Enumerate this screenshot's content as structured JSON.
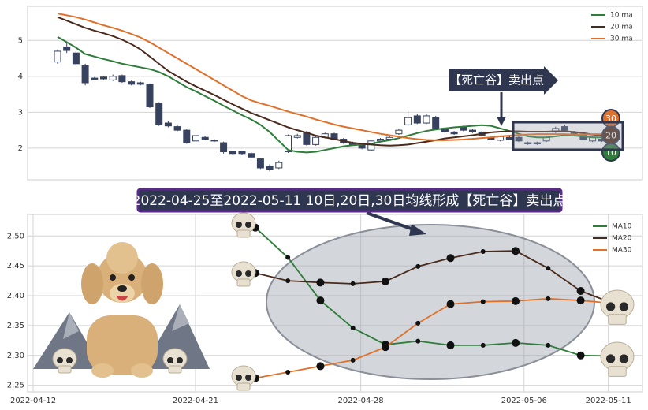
{
  "chart_data": [
    {
      "type": "candlestick",
      "open": [
        4.4,
        4.82,
        4.65,
        4.3,
        3.95,
        3.98,
        3.9,
        4.02,
        3.85,
        3.82,
        3.78,
        3.25,
        2.7,
        2.6,
        2.5,
        2.2,
        2.3,
        2.22,
        2.15,
        1.9,
        1.9,
        1.85,
        1.7,
        1.5,
        1.45,
        1.9,
        2.3,
        2.45,
        2.1,
        2.3,
        2.4,
        2.25,
        2.15,
        2.1,
        1.95,
        2.2,
        2.25,
        2.4,
        2.65,
        2.9,
        2.7,
        2.85,
        2.55,
        2.45,
        2.6,
        2.5,
        2.45,
        2.3,
        2.22,
        2.3,
        2.3,
        2.15,
        2.15,
        2.2,
        2.45,
        2.6,
        2.45,
        2.35,
        2.2,
        2.25
      ],
      "high": [
        4.75,
        4.95,
        4.7,
        4.35,
        3.98,
        4.02,
        4.05,
        4.05,
        3.88,
        3.85,
        3.8,
        3.28,
        2.75,
        2.63,
        2.53,
        2.38,
        2.33,
        2.25,
        2.18,
        1.93,
        1.93,
        1.88,
        1.73,
        1.55,
        1.65,
        2.38,
        2.4,
        2.48,
        2.33,
        2.43,
        2.43,
        2.28,
        2.18,
        2.13,
        2.23,
        2.28,
        2.33,
        2.55,
        3.05,
        2.95,
        2.95,
        2.9,
        2.58,
        2.48,
        2.63,
        2.53,
        2.48,
        2.33,
        2.35,
        2.33,
        2.33,
        2.18,
        2.18,
        2.33,
        2.6,
        2.65,
        2.48,
        2.38,
        2.33,
        2.28
      ],
      "low": [
        4.35,
        4.65,
        4.3,
        3.75,
        3.89,
        3.9,
        3.87,
        3.82,
        3.75,
        3.75,
        3.12,
        2.62,
        2.58,
        2.47,
        2.12,
        2.17,
        2.22,
        2.17,
        1.85,
        1.82,
        1.82,
        1.72,
        1.42,
        1.35,
        1.42,
        1.87,
        2.27,
        2.07,
        2.07,
        2.27,
        2.22,
        2.12,
        2.07,
        1.97,
        1.92,
        2.17,
        2.22,
        2.37,
        2.62,
        2.67,
        2.67,
        2.52,
        2.42,
        2.37,
        2.47,
        2.42,
        2.32,
        2.22,
        2.19,
        2.22,
        2.17,
        2.09,
        2.09,
        2.17,
        2.42,
        2.47,
        2.37,
        2.22,
        2.17,
        2.17
      ],
      "close": [
        4.7,
        4.72,
        4.35,
        3.82,
        3.92,
        3.93,
        4.0,
        3.85,
        3.78,
        3.78,
        3.15,
        2.65,
        2.62,
        2.5,
        2.15,
        2.35,
        2.25,
        2.2,
        1.9,
        1.85,
        1.85,
        1.75,
        1.45,
        1.4,
        1.6,
        2.35,
        2.35,
        2.1,
        2.3,
        2.4,
        2.25,
        2.15,
        2.1,
        2.0,
        2.2,
        2.25,
        2.3,
        2.5,
        2.85,
        2.7,
        2.9,
        2.55,
        2.45,
        2.4,
        2.5,
        2.45,
        2.35,
        2.25,
        2.32,
        2.25,
        2.2,
        2.12,
        2.12,
        2.3,
        2.55,
        2.5,
        2.4,
        2.25,
        2.3,
        2.2
      ],
      "up_color": "#ffffff",
      "down_color": "#36425e",
      "ylim": [
        1.12,
        5.95
      ],
      "yticks": [
        2,
        3,
        4,
        5
      ],
      "grid": true,
      "legend": "upper right",
      "series": [
        {
          "name": "10 ma",
          "color": "#2e7d3a",
          "values": [
            5.1,
            4.95,
            4.8,
            4.62,
            4.55,
            4.48,
            4.42,
            4.35,
            4.3,
            4.25,
            4.2,
            4.12,
            4.0,
            3.85,
            3.7,
            3.58,
            3.45,
            3.32,
            3.18,
            3.05,
            2.92,
            2.8,
            2.65,
            2.45,
            2.2,
            1.95,
            1.9,
            1.88,
            1.9,
            1.95,
            2.0,
            2.05,
            2.08,
            2.1,
            2.12,
            2.18,
            2.22,
            2.28,
            2.35,
            2.42,
            2.48,
            2.52,
            2.55,
            2.58,
            2.6,
            2.62,
            2.64,
            2.62,
            2.55,
            2.48,
            2.4,
            2.33,
            2.3,
            2.3,
            2.33,
            2.36,
            2.35,
            2.33,
            2.3,
            2.3
          ]
        },
        {
          "name": "20 ma",
          "color": "#4a2a1c",
          "values": [
            5.65,
            5.55,
            5.45,
            5.35,
            5.27,
            5.2,
            5.12,
            5.02,
            4.9,
            4.75,
            4.55,
            4.35,
            4.15,
            4.0,
            3.85,
            3.72,
            3.6,
            3.48,
            3.35,
            3.22,
            3.1,
            2.98,
            2.88,
            2.78,
            2.68,
            2.58,
            2.5,
            2.43,
            2.35,
            2.3,
            2.25,
            2.2,
            2.15,
            2.12,
            2.1,
            2.08,
            2.07,
            2.08,
            2.1,
            2.14,
            2.18,
            2.22,
            2.27,
            2.3,
            2.33,
            2.36,
            2.4,
            2.44,
            2.46,
            2.47,
            2.47,
            2.46,
            2.46,
            2.46,
            2.47,
            2.47,
            2.45,
            2.42,
            2.38,
            2.35
          ]
        },
        {
          "name": "30 ma",
          "color": "#e0702a",
          "values": [
            5.75,
            5.7,
            5.65,
            5.58,
            5.5,
            5.42,
            5.35,
            5.27,
            5.18,
            5.08,
            4.95,
            4.8,
            4.65,
            4.5,
            4.35,
            4.2,
            4.05,
            3.9,
            3.75,
            3.6,
            3.45,
            3.33,
            3.25,
            3.18,
            3.1,
            3.02,
            2.95,
            2.88,
            2.8,
            2.73,
            2.66,
            2.6,
            2.55,
            2.5,
            2.45,
            2.4,
            2.36,
            2.32,
            2.28,
            2.25,
            2.23,
            2.22,
            2.22,
            2.23,
            2.24,
            2.26,
            2.28,
            2.3,
            2.33,
            2.35,
            2.37,
            2.38,
            2.39,
            2.39,
            2.39,
            2.39,
            2.38,
            2.38,
            2.39,
            2.39
          ]
        }
      ],
      "annotation": "【死亡谷】卖出点",
      "badges": [
        {
          "label": "30",
          "color": "#e0702a"
        },
        {
          "label": "20",
          "color": "#4a2a1c"
        },
        {
          "label": "10",
          "color": "#2e7d3a"
        }
      ]
    },
    {
      "type": "line",
      "annotation": "2022-04-25至2022-05-11 10日,20日,30日均线形成【死亡谷】卖出点",
      "x": [
        0,
        1,
        2,
        3,
        4,
        5,
        6,
        7,
        8,
        9,
        10,
        11
      ],
      "xlim": [
        -7.0,
        11.9
      ],
      "xticks": [
        {
          "value": -6.83,
          "label": "2022-04-12"
        },
        {
          "value": -1.84,
          "label": "2022-04-21"
        },
        {
          "value": 3.24,
          "label": "2022-04-28"
        },
        {
          "value": 8.26,
          "label": "2022-05-06"
        },
        {
          "value": 10.85,
          "label": "2022-05-11"
        }
      ],
      "ylim": [
        2.239,
        2.536
      ],
      "yticks": [
        2.25,
        {
          "value": 2.3,
          "label": "2.30"
        },
        2.35,
        {
          "value": 2.4,
          "label": "2.40"
        },
        2.45,
        {
          "value": 2.5,
          "label": "2.50"
        }
      ],
      "grid": true,
      "legend": "upper right",
      "series": [
        {
          "name": "MA10",
          "color": "#2e7d3a",
          "values": [
            2.514,
            2.464,
            2.392,
            2.346,
            2.318,
            2.324,
            2.317,
            2.317,
            2.321,
            2.317,
            2.3,
            2.299
          ]
        },
        {
          "name": "MA20",
          "color": "#4a2a1c",
          "values": [
            2.438,
            2.425,
            2.422,
            2.42,
            2.424,
            2.449,
            2.463,
            2.474,
            2.475,
            2.446,
            2.408,
            2.387
          ]
        },
        {
          "name": "MA30",
          "color": "#e0702a",
          "values": [
            2.262,
            2.272,
            2.282,
            2.292,
            2.314,
            2.354,
            2.386,
            2.39,
            2.391,
            2.395,
            2.392,
            2.387
          ]
        }
      ]
    }
  ]
}
